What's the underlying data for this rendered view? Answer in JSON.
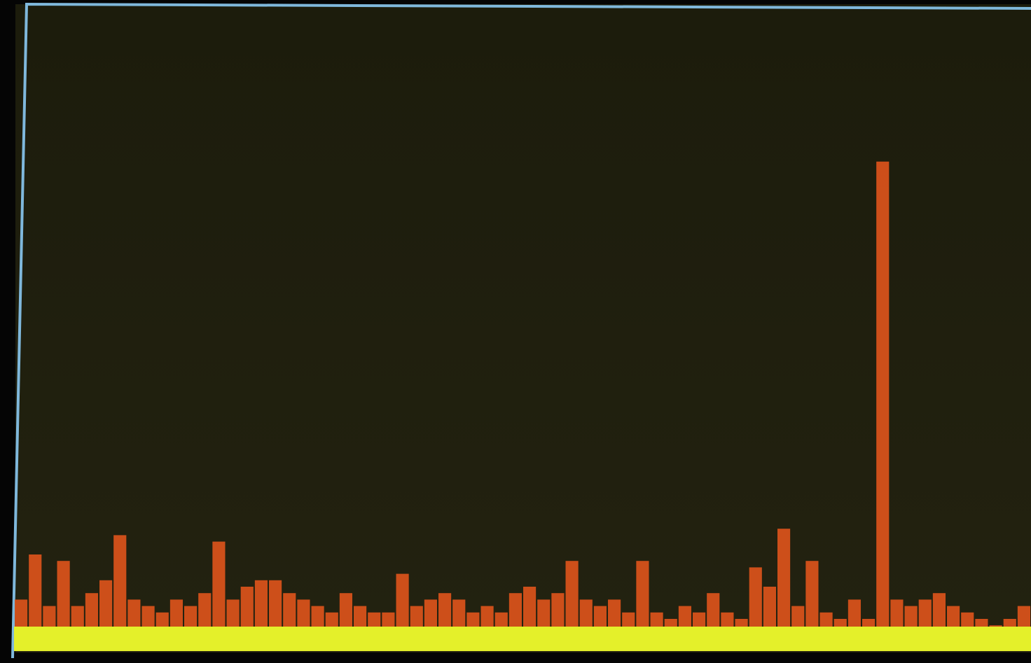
{
  "chart_data": {
    "type": "bar",
    "color": "#e0541c",
    "values": [
      8,
      15,
      7,
      14,
      7,
      9,
      11,
      18,
      8,
      7,
      6,
      8,
      7,
      9,
      17,
      8,
      10,
      11,
      11,
      9,
      8,
      7,
      6,
      9,
      7,
      6,
      6,
      12,
      7,
      8,
      9,
      8,
      6,
      7,
      6,
      9,
      10,
      8,
      9,
      14,
      8,
      7,
      8,
      6,
      14,
      6,
      5,
      7,
      6,
      9,
      6,
      5,
      13,
      10,
      19,
      7,
      14,
      6,
      5,
      8,
      5,
      76,
      8,
      7,
      8,
      9,
      7,
      6,
      5,
      4,
      5,
      7
    ],
    "ylim": [
      0,
      100
    ]
  }
}
